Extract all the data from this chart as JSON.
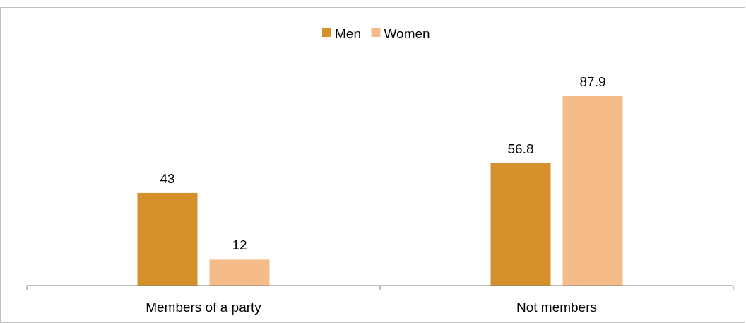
{
  "chart_data": {
    "type": "bar",
    "categories": [
      "Members of a party",
      "Not members"
    ],
    "series": [
      {
        "name": "Men",
        "color": "#d4902a",
        "values": [
          43,
          56.8
        ]
      },
      {
        "name": "Women",
        "color": "#f5bc8a",
        "values": [
          12,
          87.9
        ]
      }
    ],
    "tick_labels": "x",
    "data_labels": true,
    "legend": "top",
    "grid": false
  }
}
